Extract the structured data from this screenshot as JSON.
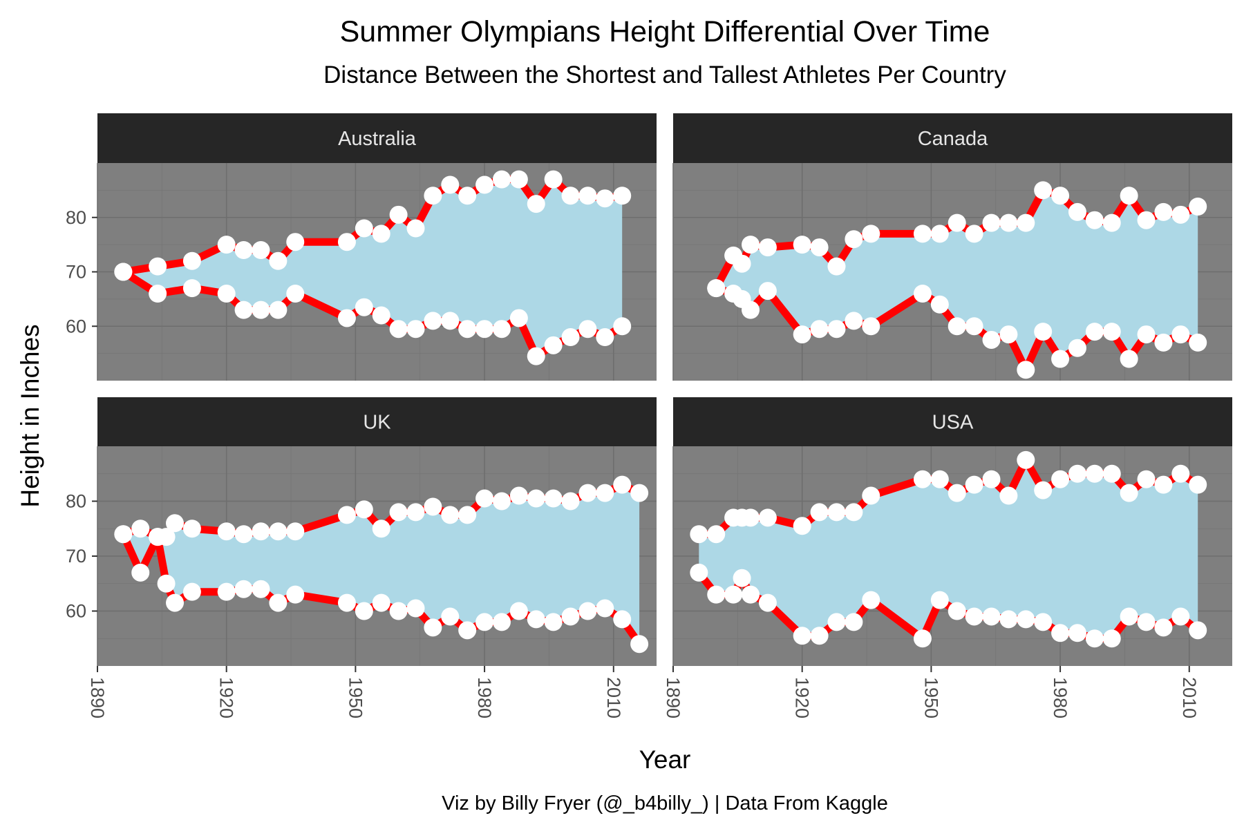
{
  "chart_data": {
    "type": "area",
    "title": "Summer Olympians Height Differential Over Time",
    "subtitle": "Distance Between the Shortest and Tallest Athletes Per Country",
    "xlabel": "Year",
    "ylabel": "Height in Inches",
    "caption": "Viz by Billy Fryer (@_b4billy_) | Data From Kaggle",
    "xlim": [
      1890,
      2020
    ],
    "ylim": [
      50,
      90
    ],
    "x_ticks": [
      "1890",
      "1920",
      "1950",
      "1980",
      "2010"
    ],
    "y_ticks": [
      "60",
      "70",
      "80"
    ],
    "colors": {
      "ribbon": "#add8e6",
      "line": "#ff0000",
      "point": "#ffffff",
      "panel": "#7f7f7f",
      "strip": "#262626"
    },
    "panels": [
      {
        "name": "Australia",
        "years": [
          1896,
          1900,
          1904,
          1906,
          1908,
          1912,
          1920,
          1924,
          1928,
          1932,
          1936,
          1948,
          1952,
          1956,
          1960,
          1964,
          1968,
          1972,
          1976,
          1980,
          1984,
          1988,
          1992,
          1996,
          2000,
          2004,
          2008,
          2012,
          2016
        ],
        "max": [
          70,
          null,
          71,
          null,
          null,
          72,
          75,
          74,
          74,
          72,
          75.5,
          75.5,
          78,
          77,
          80.5,
          78,
          84,
          86,
          84,
          86,
          87,
          87,
          82.5,
          87,
          84,
          84,
          83.5,
          84,
          null
        ],
        "min": [
          70,
          null,
          66,
          null,
          null,
          67,
          66,
          63,
          63,
          63,
          66,
          61.5,
          63.5,
          62,
          59.5,
          59.5,
          61,
          61,
          59.5,
          59.5,
          59.5,
          61.5,
          54.5,
          56.5,
          58,
          59.5,
          58,
          60,
          null
        ]
      },
      {
        "name": "Canada",
        "years": [
          1900,
          1904,
          1906,
          1908,
          1912,
          1920,
          1924,
          1928,
          1932,
          1936,
          1948,
          1952,
          1956,
          1960,
          1964,
          1968,
          1972,
          1976,
          1980,
          1984,
          1988,
          1992,
          1996,
          2000,
          2004,
          2008,
          2012,
          2016
        ],
        "max": [
          67,
          73,
          71.5,
          75,
          74.5,
          75,
          74.5,
          71,
          76,
          77,
          77,
          77,
          79,
          77,
          79,
          79,
          79,
          85,
          84,
          81,
          79.5,
          79,
          84,
          79.5,
          81,
          80.5,
          82,
          null
        ],
        "min": [
          67,
          66,
          65,
          63,
          66.5,
          58.5,
          59.5,
          59.5,
          61,
          60,
          66,
          64,
          60,
          60,
          57.5,
          58.5,
          52,
          59,
          54,
          56,
          59,
          59,
          54,
          58.5,
          57,
          58.5,
          57,
          null
        ]
      },
      {
        "name": "UK",
        "years": [
          1896,
          1900,
          1904,
          1906,
          1908,
          1912,
          1920,
          1924,
          1928,
          1932,
          1936,
          1948,
          1952,
          1956,
          1960,
          1964,
          1968,
          1972,
          1976,
          1980,
          1984,
          1988,
          1992,
          1996,
          2000,
          2004,
          2008,
          2012,
          2016
        ],
        "max": [
          74,
          75,
          73.5,
          73.5,
          76,
          75,
          74.5,
          74,
          74.5,
          74.5,
          74.5,
          77.5,
          78.5,
          75,
          78,
          78,
          79,
          77.5,
          77.5,
          80.5,
          80,
          81,
          80.5,
          80.5,
          80,
          81.5,
          81.5,
          83,
          81.5
        ],
        "min": [
          74,
          67,
          73.5,
          65,
          61.5,
          63.5,
          63.5,
          64,
          64,
          61.5,
          63,
          61.5,
          60,
          61.5,
          60,
          60.5,
          57,
          59,
          56.5,
          58,
          58,
          60,
          58.5,
          58,
          59,
          60,
          60.5,
          58.5,
          54
        ]
      },
      {
        "name": "USA",
        "years": [
          1896,
          1900,
          1904,
          1906,
          1908,
          1912,
          1920,
          1924,
          1928,
          1932,
          1936,
          1948,
          1952,
          1956,
          1960,
          1964,
          1968,
          1972,
          1976,
          1980,
          1984,
          1988,
          1992,
          1996,
          2000,
          2004,
          2008,
          2012,
          2016
        ],
        "max": [
          74,
          74,
          77,
          77,
          77,
          77,
          75.5,
          78,
          78,
          78,
          81,
          84,
          84,
          81.5,
          83,
          84,
          81,
          87.5,
          82,
          84,
          85,
          85,
          85,
          81.5,
          84,
          83,
          85,
          83,
          null
        ],
        "min": [
          67,
          63,
          63,
          66,
          63,
          61.5,
          55.5,
          55.5,
          58,
          58,
          62,
          55,
          62,
          60,
          59,
          59,
          58.5,
          58.5,
          58,
          56,
          56,
          55,
          55,
          59,
          58,
          57,
          59,
          56.5,
          null
        ]
      }
    ]
  }
}
